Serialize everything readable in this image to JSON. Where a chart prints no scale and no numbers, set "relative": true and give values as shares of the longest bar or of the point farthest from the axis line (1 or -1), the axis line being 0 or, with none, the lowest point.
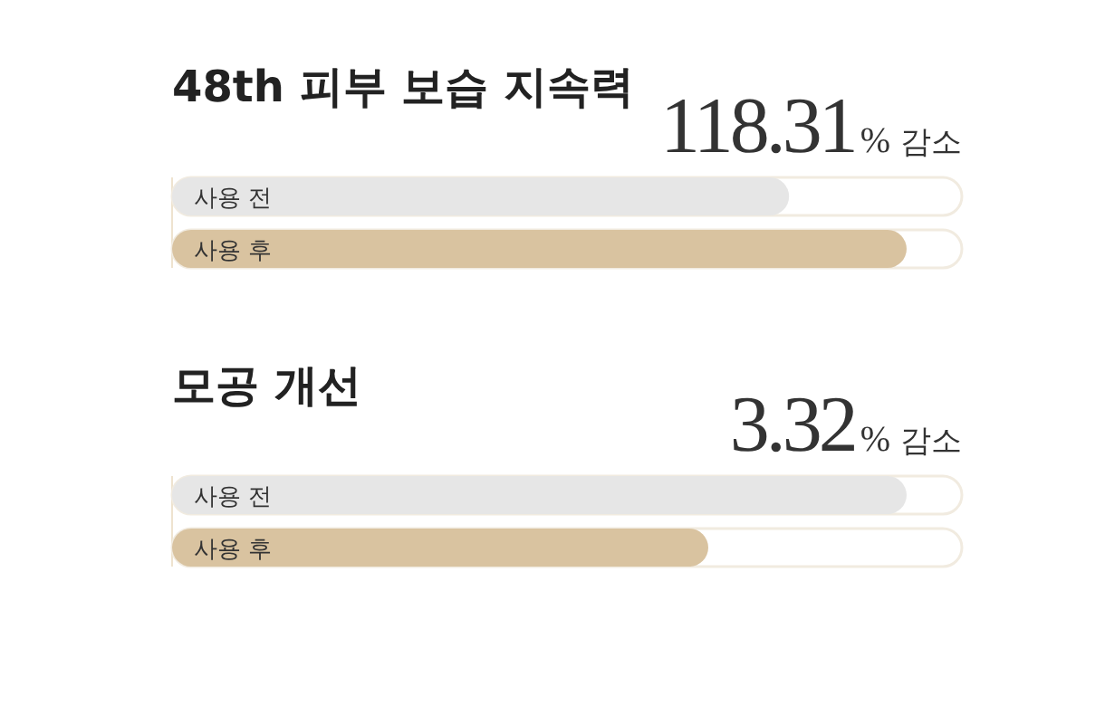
{
  "chart_data": [
    {
      "type": "bar",
      "orientation": "horizontal",
      "relative": true,
      "title": "48th 피부 보습 지속력",
      "subtitle": "118.31% 감소",
      "categories": [
        "사용 전",
        "사용 후"
      ],
      "values": [
        0.84,
        1
      ],
      "colors": [
        "#e6e6e6",
        "#d9c3a0"
      ]
    },
    {
      "type": "bar",
      "orientation": "horizontal",
      "relative": true,
      "title": "모공 개선",
      "subtitle": "3.32% 감소",
      "categories": [
        "사용 전",
        "사용 후"
      ],
      "values": [
        1,
        0.73
      ],
      "colors": [
        "#e6e6e6",
        "#d9c3a0"
      ]
    }
  ]
}
